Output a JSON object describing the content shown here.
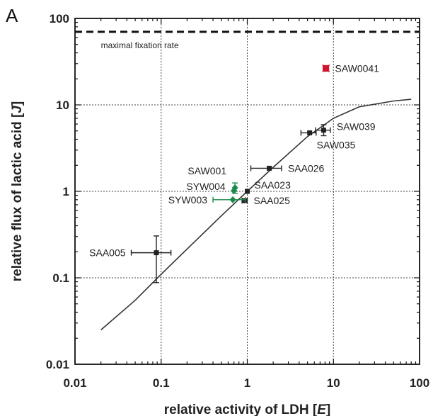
{
  "panel_label": "A",
  "chart_data": {
    "type": "scatter",
    "xscale": "log",
    "yscale": "log",
    "xlim": [
      0.01,
      100
    ],
    "ylim": [
      0.01,
      100
    ],
    "xticks": [
      "0.01",
      "0.1",
      "1",
      "10",
      "100"
    ],
    "yticks": [
      "0.01",
      "0.1",
      "1",
      "10",
      "100"
    ],
    "grid": true,
    "xlabel": {
      "pre": "relative activity of LDH [",
      "var": "E",
      "post": "]"
    },
    "ylabel": {
      "pre": "relative flux of lactic acid [",
      "var": "J",
      "post": "]"
    },
    "reference_line": {
      "y": 70,
      "label": "maximal fixation rate"
    },
    "fit_curve": {
      "color": "#333333",
      "points": [
        [
          0.02,
          0.025
        ],
        [
          0.05,
          0.055
        ],
        [
          0.1,
          0.11
        ],
        [
          0.2,
          0.215
        ],
        [
          0.5,
          0.52
        ],
        [
          1,
          1.0
        ],
        [
          2,
          1.9
        ],
        [
          5,
          4.3
        ],
        [
          10,
          7.0
        ],
        [
          20,
          9.5
        ],
        [
          50,
          11.1
        ],
        [
          80,
          11.6
        ]
      ]
    },
    "colors": {
      "black": "#222222",
      "green": "#1a8a4a",
      "red": "#d0162c"
    },
    "points": [
      {
        "label": "SAA005",
        "x": 0.088,
        "y": 0.195,
        "xerr": [
          0.045,
          0.13
        ],
        "yerr": [
          0.088,
          0.305
        ],
        "color": "black",
        "marker": "square",
        "label_side": "left"
      },
      {
        "label": "SAA023",
        "x": 1.0,
        "y": 1.0,
        "xerr": null,
        "yerr": null,
        "color": "black",
        "marker": "square",
        "label_side": "right"
      },
      {
        "label": "SAA025",
        "x": 0.93,
        "y": 0.78,
        "xerr": [
          0.87,
          1.0
        ],
        "yerr": null,
        "color": "black",
        "marker": "square",
        "label_side": "right"
      },
      {
        "label": "SAA026",
        "x": 1.8,
        "y": 1.85,
        "xerr": [
          1.1,
          2.5
        ],
        "yerr": null,
        "color": "black",
        "marker": "square",
        "label_side": "right"
      },
      {
        "label": "SAW035",
        "x": 5.3,
        "y": 4.75,
        "xerr": [
          4.2,
          6.3
        ],
        "yerr": null,
        "color": "black",
        "marker": "square",
        "label_side": "below"
      },
      {
        "label": "SAW039",
        "x": 7.7,
        "y": 5.1,
        "xerr": [
          6.2,
          9.2
        ],
        "yerr": [
          4.4,
          5.9
        ],
        "color": "black",
        "marker": "square",
        "label_side": "right"
      },
      {
        "label": "SAW001",
        "x": 0.72,
        "y": 1.1,
        "xerr": null,
        "yerr": [
          0.95,
          1.25
        ],
        "color": "green",
        "marker": "diamond",
        "label_side": "left"
      },
      {
        "label": "SYW004",
        "x": 0.7,
        "y": 1.02,
        "xerr": null,
        "yerr": null,
        "color": "green",
        "marker": "diamond",
        "label_side": "left"
      },
      {
        "label": "SYW003",
        "x": 0.68,
        "y": 0.8,
        "xerr": [
          0.4,
          0.95
        ],
        "yerr": null,
        "color": "green",
        "marker": "diamond",
        "label_side": "left"
      },
      {
        "label": "SAW0041",
        "x": 8.2,
        "y": 26.5,
        "xerr": [
          7.6,
          8.8
        ],
        "yerr": [
          24.5,
          28.5
        ],
        "color": "red",
        "marker": "x",
        "label_side": "right"
      }
    ]
  }
}
